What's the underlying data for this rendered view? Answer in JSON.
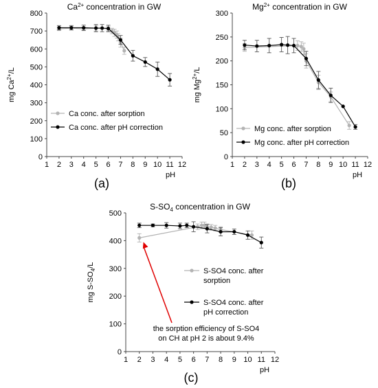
{
  "chart_data": [
    {
      "id": "a",
      "type": "line",
      "panel_label": "(a)",
      "title_pre": "Ca",
      "title_sup": "2+",
      "title_post": " concentration in GW",
      "ylabel_pre": "mg Ca",
      "ylabel_sup": "2+",
      "ylabel_post": "/L",
      "xlabel": "pH",
      "xlim": [
        1,
        12
      ],
      "ylim": [
        0,
        800
      ],
      "xticks": [
        1,
        2,
        3,
        4,
        5,
        6,
        7,
        8,
        9,
        10,
        11,
        12
      ],
      "yticks": [
        0,
        100,
        200,
        300,
        400,
        500,
        600,
        700,
        800
      ],
      "grid": false,
      "legend_position": "lower-left",
      "series": [
        {
          "name": "Ca conc. after sorption",
          "color": "#b3b3b3",
          "points": [
            {
              "x": 2.0,
              "y": 712,
              "err": 10
            },
            {
              "x": 3.0,
              "y": 715,
              "err": 10
            },
            {
              "x": 4.0,
              "y": 712,
              "err": 10
            },
            {
              "x": 5.0,
              "y": 715,
              "err": 15
            },
            {
              "x": 6.0,
              "y": 712,
              "err": 12
            },
            {
              "x": 6.3,
              "y": 700,
              "err": 15
            },
            {
              "x": 6.5,
              "y": 690,
              "err": 20
            },
            {
              "x": 6.7,
              "y": 680,
              "err": 20
            },
            {
              "x": 6.8,
              "y": 665,
              "err": 20
            },
            {
              "x": 7.0,
              "y": 635,
              "err": 25
            },
            {
              "x": 7.3,
              "y": 590,
              "err": 20
            }
          ]
        },
        {
          "name": "Ca conc. after pH correction",
          "color": "#000000",
          "points": [
            {
              "x": 2.0,
              "y": 718,
              "err": 12
            },
            {
              "x": 3.0,
              "y": 718,
              "err": 12
            },
            {
              "x": 4.0,
              "y": 718,
              "err": 15
            },
            {
              "x": 5.0,
              "y": 716,
              "err": 20
            },
            {
              "x": 5.5,
              "y": 716,
              "err": 20
            },
            {
              "x": 6.0,
              "y": 714,
              "err": 18
            },
            {
              "x": 7.0,
              "y": 650,
              "err": 25
            },
            {
              "x": 8.0,
              "y": 562,
              "err": 30
            },
            {
              "x": 9.0,
              "y": 527,
              "err": 25
            },
            {
              "x": 10.0,
              "y": 487,
              "err": 40
            },
            {
              "x": 11.0,
              "y": 428,
              "err": 35
            }
          ]
        }
      ]
    },
    {
      "id": "b",
      "type": "line",
      "panel_label": "(b)",
      "title_pre": "Mg",
      "title_sup": "2+",
      "title_post": " concentration in GW",
      "ylabel_pre": "mg Mg",
      "ylabel_sup": "2+",
      "ylabel_post": "/L",
      "xlabel": "pH",
      "xlim": [
        1,
        12
      ],
      "ylim": [
        0,
        300
      ],
      "xticks": [
        1,
        2,
        3,
        4,
        5,
        6,
        7,
        8,
        9,
        10,
        11,
        12
      ],
      "yticks": [
        0,
        50,
        100,
        150,
        200,
        250,
        300
      ],
      "grid": false,
      "legend_position": "lower-left",
      "series": [
        {
          "name": "Mg conc. after sorption",
          "color": "#b3b3b3",
          "points": [
            {
              "x": 2.0,
              "y": 228,
              "err": 8
            },
            {
              "x": 6.3,
              "y": 232,
              "err": 10
            },
            {
              "x": 6.6,
              "y": 230,
              "err": 10
            },
            {
              "x": 6.8,
              "y": 225,
              "err": 12
            },
            {
              "x": 7.0,
              "y": 200,
              "err": 15
            },
            {
              "x": 8.0,
              "y": 155,
              "err": 15
            },
            {
              "x": 9.0,
              "y": 125,
              "err": 10
            },
            {
              "x": 10.5,
              "y": 65,
              "err": 8
            }
          ]
        },
        {
          "name": "Mg conc. after pH correction",
          "color": "#000000",
          "points": [
            {
              "x": 2.0,
              "y": 233,
              "err": 10
            },
            {
              "x": 3.0,
              "y": 231,
              "err": 12
            },
            {
              "x": 4.0,
              "y": 232,
              "err": 15
            },
            {
              "x": 5.0,
              "y": 234,
              "err": 15
            },
            {
              "x": 5.5,
              "y": 233,
              "err": 18
            },
            {
              "x": 6.0,
              "y": 232,
              "err": 15
            },
            {
              "x": 7.0,
              "y": 205,
              "err": 15
            },
            {
              "x": 8.0,
              "y": 160,
              "err": 18
            },
            {
              "x": 9.0,
              "y": 128,
              "err": 15
            },
            {
              "x": 10.0,
              "y": 105,
              "err": 0
            },
            {
              "x": 11.0,
              "y": 62,
              "err": 5
            }
          ]
        }
      ]
    },
    {
      "id": "c",
      "type": "line",
      "panel_label": "(c)",
      "title_pre": "S-SO",
      "title_sub": "4",
      "title_post": " concentration in GW",
      "ylabel_pre": "mg S-SO",
      "ylabel_sub": "4",
      "ylabel_post": "/L",
      "xlabel": "pH",
      "xlim": [
        1,
        12
      ],
      "ylim": [
        0,
        500
      ],
      "xticks": [
        1,
        2,
        3,
        4,
        5,
        6,
        7,
        8,
        9,
        10,
        11,
        12
      ],
      "yticks": [
        0,
        100,
        200,
        300,
        400,
        500
      ],
      "grid": false,
      "legend_position": "right",
      "annotation": {
        "lines": [
          "the sorption efficiency of S-SO4",
          "on CH at pH 2 is about 9.4%"
        ],
        "arrow_to": {
          "x": 2.3,
          "y": 420
        },
        "color": "#e00000"
      },
      "series": [
        {
          "name": "S-SO4 conc. after sorption",
          "legend_lines": [
            "S-SO4 conc. after",
            "sorption"
          ],
          "color": "#b3b3b3",
          "points": [
            {
              "x": 2.0,
              "y": 410,
              "err": 15
            },
            {
              "x": 6.3,
              "y": 450,
              "err": 10
            },
            {
              "x": 6.6,
              "y": 455,
              "err": 12
            },
            {
              "x": 6.8,
              "y": 455,
              "err": 12
            },
            {
              "x": 7.0,
              "y": 450,
              "err": 10
            },
            {
              "x": 7.3,
              "y": 448,
              "err": 10
            },
            {
              "x": 7.6,
              "y": 445,
              "err": 10
            },
            {
              "x": 8.0,
              "y": 440,
              "err": 10
            },
            {
              "x": 10.3,
              "y": 420,
              "err": 15
            }
          ]
        },
        {
          "name": "S-SO4 conc. after pH correction",
          "legend_lines": [
            "S-SO4 conc. after",
            "pH correction"
          ],
          "color": "#000000",
          "points": [
            {
              "x": 2.0,
              "y": 455,
              "err": 8
            },
            {
              "x": 3.0,
              "y": 455,
              "err": 5
            },
            {
              "x": 4.0,
              "y": 455,
              "err": 10
            },
            {
              "x": 5.0,
              "y": 453,
              "err": 10
            },
            {
              "x": 5.5,
              "y": 455,
              "err": 8
            },
            {
              "x": 6.0,
              "y": 450,
              "err": 18
            },
            {
              "x": 7.0,
              "y": 443,
              "err": 15
            },
            {
              "x": 8.0,
              "y": 432,
              "err": 15
            },
            {
              "x": 9.0,
              "y": 432,
              "err": 10
            },
            {
              "x": 10.0,
              "y": 420,
              "err": 15
            },
            {
              "x": 11.0,
              "y": 393,
              "err": 20
            }
          ]
        }
      ]
    }
  ]
}
